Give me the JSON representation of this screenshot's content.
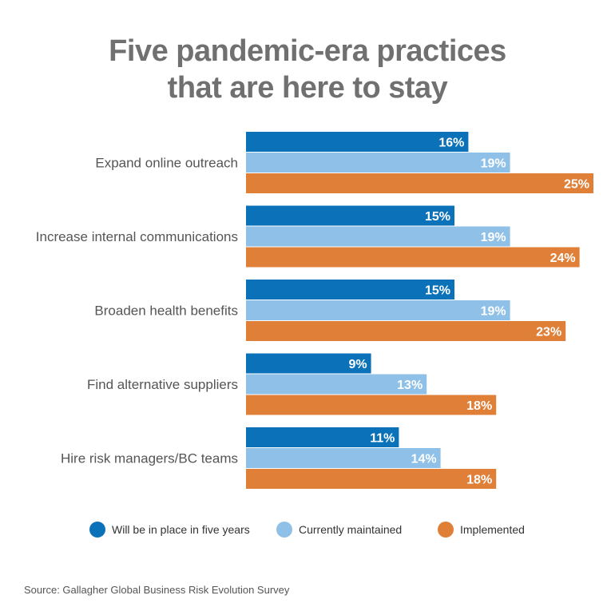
{
  "title_line1": "Five pandemic-era practices",
  "title_line2": "that are here to stay",
  "source": "Source: Gallagher Global Business Risk Evolution Survey",
  "colors": {
    "will_be_in_place": "#0b72b9",
    "currently_maintained": "#8fc1e8",
    "implemented": "#e07f37",
    "title": "#707070",
    "category_label": "#555555"
  },
  "chart_data": {
    "type": "bar",
    "orientation": "horizontal",
    "categories": [
      "Expand online outreach",
      "Increase internal communications",
      "Broaden health benefits",
      "Find alternative suppliers",
      "Hire risk managers/BC teams"
    ],
    "series": [
      {
        "name": "Will be in place in five years",
        "values": [
          16,
          15,
          15,
          9,
          11
        ],
        "labels": [
          "16%",
          "15%",
          "15%",
          "9%",
          "11%"
        ]
      },
      {
        "name": "Currently maintained",
        "values": [
          19,
          19,
          19,
          13,
          14
        ],
        "labels": [
          "19%",
          "19%",
          "19%",
          "13%",
          "14%"
        ]
      },
      {
        "name": "Implemented",
        "values": [
          25,
          24,
          23,
          18,
          18
        ],
        "labels": [
          "25%",
          "24%",
          "23%",
          "18%",
          "18%"
        ]
      }
    ],
    "xlim": [
      0,
      25
    ],
    "grid": false,
    "legend_position": "bottom"
  }
}
